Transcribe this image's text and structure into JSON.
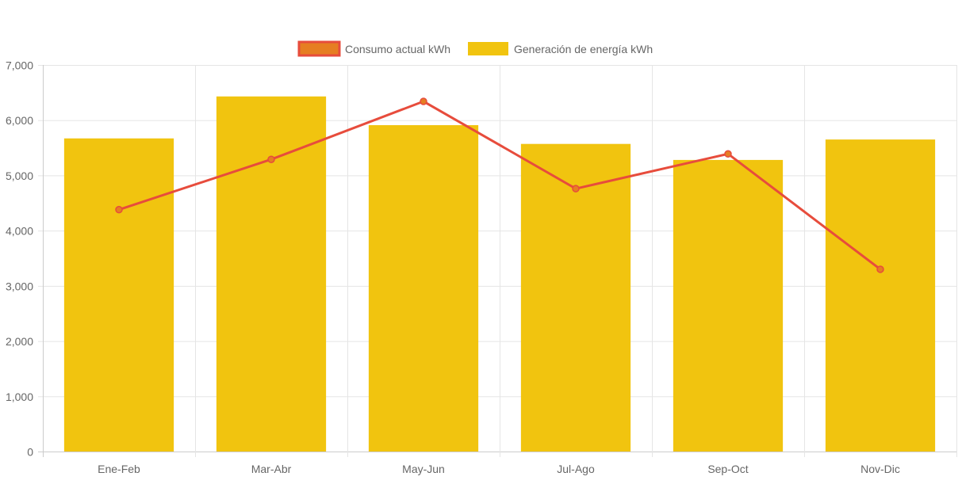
{
  "chart_data": {
    "type": "bar",
    "title": "",
    "xlabel": "",
    "ylabel": "",
    "ylim": [
      0,
      7000
    ],
    "yticks": [
      "0",
      "1,000",
      "2,000",
      "3,000",
      "4,000",
      "5,000",
      "6,000",
      "7,000"
    ],
    "ytick_values": [
      0,
      1000,
      2000,
      3000,
      4000,
      5000,
      6000,
      7000
    ],
    "grid": true,
    "legend_position": "top",
    "categories": [
      "Ene-Feb",
      "Mar-Abr",
      "May-Jun",
      "Jul-Ago",
      "Sep-Oct",
      "Nov-Dic"
    ],
    "series": [
      {
        "name": "Consumo actual kWh",
        "type": "line",
        "color": "#e74c3c",
        "fill": "#e67e22",
        "values": [
          4380,
          5290,
          6340,
          4760,
          5390,
          3300
        ]
      },
      {
        "name": "Generación de energía kWh",
        "type": "bar",
        "color": "#f1c40f",
        "values": [
          5670,
          6430,
          5910,
          5570,
          5280,
          5650
        ]
      }
    ]
  }
}
